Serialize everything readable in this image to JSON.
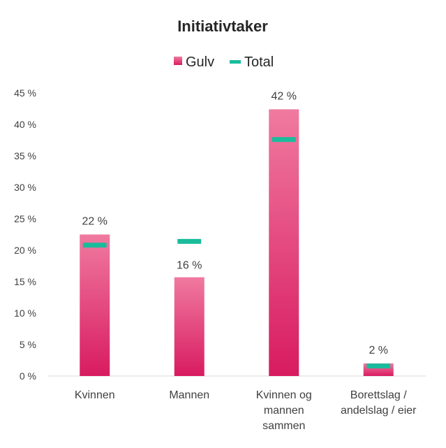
{
  "chart_data": {
    "type": "bar",
    "title": "Initiativtaker",
    "categories": [
      [
        "Kvinnen"
      ],
      [
        "Mannen"
      ],
      [
        "Kvinnen og",
        "mannen",
        "sammen"
      ],
      [
        "Borettslag /",
        "andelslag / eier"
      ]
    ],
    "series": [
      {
        "name": "Gulv",
        "kind": "bar",
        "values": [
          22.5,
          15.7,
          42.4,
          2.0
        ],
        "labels": [
          "22 %",
          "16 %",
          "42 %",
          "2 %"
        ],
        "color_top": "#f07aa0",
        "color_bottom": "#d81b60"
      },
      {
        "name": "Total",
        "kind": "marker",
        "values": [
          20.8,
          21.4,
          37.6,
          1.6
        ],
        "color": "#1abc9c"
      }
    ],
    "ylim": [
      0,
      45
    ],
    "yticks": [
      "0 %",
      "5 %",
      "10 %",
      "15 %",
      "20 %",
      "25 %",
      "30 %",
      "35 %",
      "40 %",
      "45 %"
    ],
    "legend_position": "top"
  }
}
